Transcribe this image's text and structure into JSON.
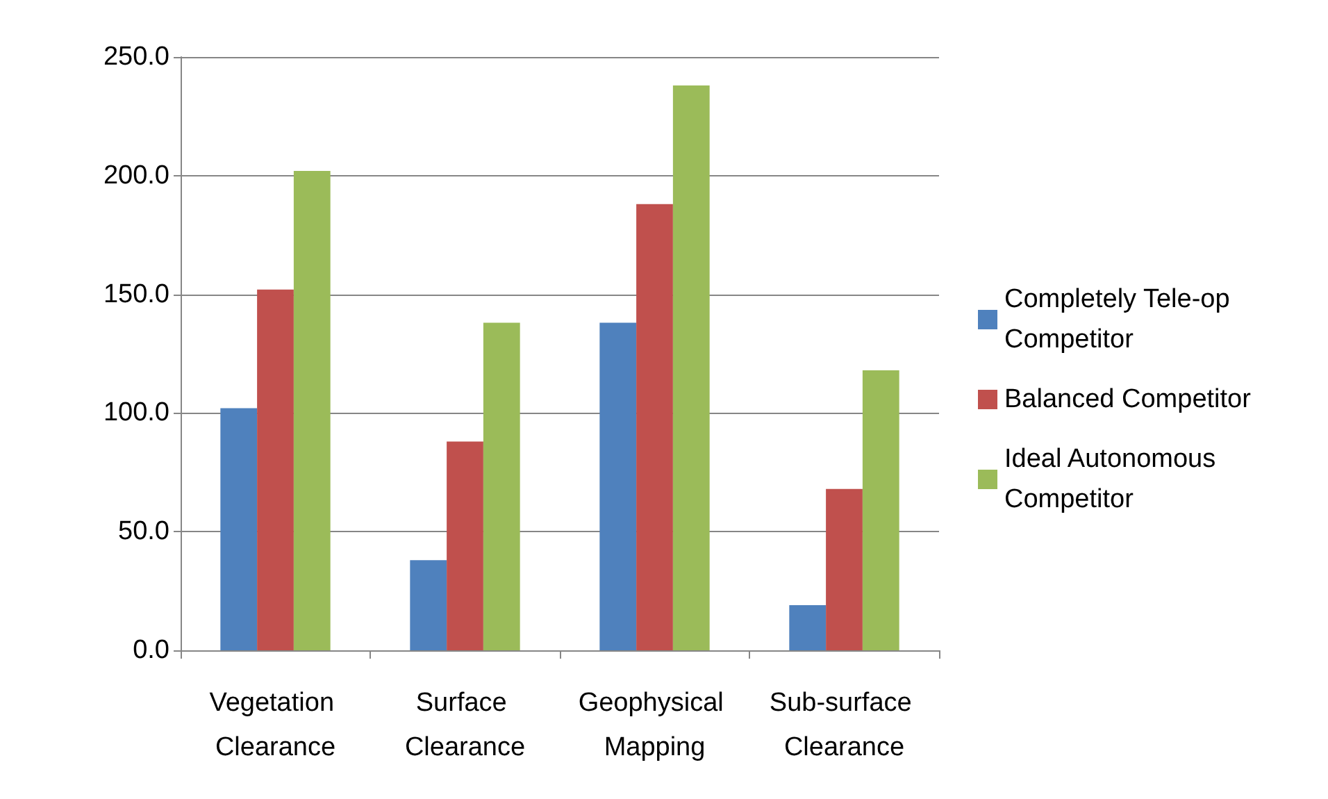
{
  "chart_data": {
    "type": "bar",
    "categories": [
      "Vegetation Clearance",
      "Surface Clearance",
      "Geophysical Mapping",
      "Sub-surface Clearance"
    ],
    "series": [
      {
        "name": "Completely Tele-op Competitor",
        "color": "#4f81bd",
        "values": [
          102,
          38,
          138,
          19
        ]
      },
      {
        "name": "Balanced Competitor",
        "color": "#c0504d",
        "values": [
          152,
          88,
          188,
          68
        ]
      },
      {
        "name": "Ideal Autonomous Competitor",
        "color": "#9bbb59",
        "values": [
          202,
          138,
          238,
          118
        ]
      }
    ],
    "ylim": [
      0,
      250
    ],
    "yticks": [
      {
        "value": 0,
        "label": "0.0"
      },
      {
        "value": 50,
        "label": "50.0"
      },
      {
        "value": 100,
        "label": "100.0"
      },
      {
        "value": 150,
        "label": "150.0"
      },
      {
        "value": 200,
        "label": "200.0"
      },
      {
        "value": 250,
        "label": "250.0"
      }
    ],
    "grid": "y",
    "legend": "right"
  }
}
